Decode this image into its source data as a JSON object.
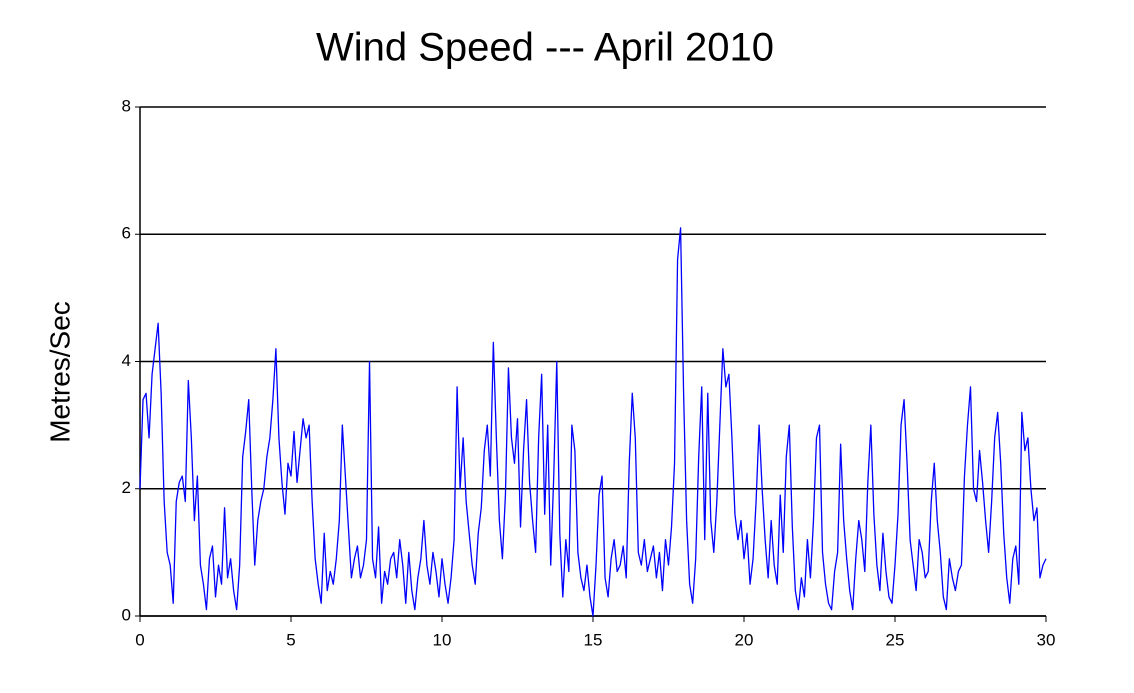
{
  "chart_data": {
    "type": "line",
    "title": "Wind Speed --- April 2010",
    "ylabel": "Metres/Sec",
    "xlim": [
      0,
      30
    ],
    "xticks": [
      0,
      5,
      10,
      15,
      20,
      25,
      30
    ],
    "ylim": [
      0,
      8
    ],
    "yticks": [
      0,
      2,
      4,
      6,
      8
    ],
    "grid": true,
    "x": [
      0,
      0.1,
      0.2,
      0.3,
      0.4,
      0.5,
      0.6,
      0.7,
      0.8,
      0.9,
      1,
      1.1,
      1.2,
      1.3,
      1.4,
      1.5,
      1.6,
      1.7,
      1.8,
      1.9,
      2,
      2.1,
      2.2,
      2.3,
      2.4,
      2.5,
      2.6,
      2.7,
      2.8,
      2.9,
      3,
      3.1,
      3.2,
      3.3,
      3.4,
      3.5,
      3.6,
      3.7,
      3.8,
      3.9,
      4,
      4.1,
      4.2,
      4.3,
      4.4,
      4.5,
      4.6,
      4.7,
      4.8,
      4.9,
      5,
      5.1,
      5.2,
      5.3,
      5.4,
      5.5,
      5.6,
      5.7,
      5.8,
      5.9,
      6,
      6.1,
      6.2,
      6.3,
      6.4,
      6.5,
      6.6,
      6.7,
      6.8,
      6.9,
      7,
      7.1,
      7.2,
      7.3,
      7.4,
      7.5,
      7.6,
      7.7,
      7.8,
      7.9,
      8,
      8.1,
      8.2,
      8.3,
      8.4,
      8.5,
      8.6,
      8.7,
      8.8,
      8.9,
      9,
      9.1,
      9.2,
      9.3,
      9.4,
      9.5,
      9.6,
      9.7,
      9.8,
      9.9,
      10,
      10.1,
      10.2,
      10.3,
      10.4,
      10.5,
      10.6,
      10.7,
      10.8,
      10.9,
      11,
      11.1,
      11.2,
      11.3,
      11.4,
      11.5,
      11.6,
      11.7,
      11.8,
      11.9,
      12,
      12.1,
      12.2,
      12.3,
      12.4,
      12.5,
      12.6,
      12.7,
      12.8,
      12.9,
      13,
      13.1,
      13.2,
      13.3,
      13.4,
      13.5,
      13.6,
      13.7,
      13.8,
      13.9,
      14,
      14.1,
      14.2,
      14.3,
      14.4,
      14.5,
      14.6,
      14.7,
      14.8,
      14.9,
      15,
      15.1,
      15.2,
      15.3,
      15.4,
      15.5,
      15.6,
      15.7,
      15.8,
      15.9,
      16,
      16.1,
      16.2,
      16.3,
      16.4,
      16.5,
      16.6,
      16.7,
      16.8,
      16.9,
      17,
      17.1,
      17.2,
      17.3,
      17.4,
      17.5,
      17.6,
      17.7,
      17.8,
      17.9,
      18,
      18.1,
      18.2,
      18.3,
      18.4,
      18.5,
      18.6,
      18.7,
      18.8,
      18.9,
      19,
      19.1,
      19.2,
      19.3,
      19.4,
      19.5,
      19.6,
      19.7,
      19.8,
      19.9,
      20,
      20.1,
      20.2,
      20.3,
      20.4,
      20.5,
      20.6,
      20.7,
      20.8,
      20.9,
      21,
      21.1,
      21.2,
      21.3,
      21.4,
      21.5,
      21.6,
      21.7,
      21.8,
      21.9,
      22,
      22.1,
      22.2,
      22.3,
      22.4,
      22.5,
      22.6,
      22.7,
      22.8,
      22.9,
      23,
      23.1,
      23.2,
      23.3,
      23.4,
      23.5,
      23.6,
      23.7,
      23.8,
      23.9,
      24,
      24.1,
      24.2,
      24.3,
      24.4,
      24.5,
      24.6,
      24.7,
      24.8,
      24.9,
      25,
      25.1,
      25.2,
      25.3,
      25.4,
      25.5,
      25.6,
      25.7,
      25.8,
      25.9,
      26,
      26.1,
      26.2,
      26.3,
      26.4,
      26.5,
      26.6,
      26.7,
      26.8,
      26.9,
      27,
      27.1,
      27.2,
      27.3,
      27.4,
      27.5,
      27.6,
      27.7,
      27.8,
      27.9,
      28,
      28.1,
      28.2,
      28.3,
      28.4,
      28.5,
      28.6,
      28.7,
      28.8,
      28.9,
      29,
      29.1,
      29.2,
      29.3,
      29.4,
      29.5,
      29.6,
      29.7,
      29.8,
      29.9,
      30
    ],
    "series": [
      {
        "color": "#0000ff",
        "values": [
          2.0,
          3.4,
          3.5,
          2.8,
          3.8,
          4.2,
          4.6,
          3.5,
          1.8,
          1.0,
          0.8,
          0.2,
          1.8,
          2.1,
          2.2,
          1.8,
          3.7,
          2.8,
          1.5,
          2.2,
          0.8,
          0.5,
          0.1,
          0.9,
          1.1,
          0.3,
          0.8,
          0.5,
          1.7,
          0.6,
          0.9,
          0.4,
          0.1,
          0.8,
          2.5,
          2.9,
          3.4,
          2.0,
          0.8,
          1.5,
          1.8,
          2.0,
          2.5,
          2.8,
          3.4,
          4.2,
          2.8,
          2.1,
          1.6,
          2.4,
          2.2,
          2.9,
          2.1,
          2.6,
          3.1,
          2.8,
          3.0,
          1.8,
          0.9,
          0.5,
          0.2,
          1.3,
          0.4,
          0.7,
          0.5,
          0.9,
          1.5,
          3.0,
          2.2,
          1.4,
          0.6,
          0.9,
          1.1,
          0.6,
          0.8,
          1.2,
          4.0,
          0.9,
          0.6,
          1.4,
          0.2,
          0.7,
          0.5,
          0.9,
          1.0,
          0.6,
          1.2,
          0.8,
          0.2,
          1.0,
          0.4,
          0.1,
          0.6,
          0.9,
          1.5,
          0.8,
          0.5,
          1.0,
          0.7,
          0.3,
          0.9,
          0.5,
          0.2,
          0.6,
          1.2,
          3.6,
          2.0,
          2.8,
          1.8,
          1.3,
          0.8,
          0.5,
          1.3,
          1.7,
          2.6,
          3.0,
          2.2,
          4.3,
          2.8,
          1.5,
          0.9,
          1.9,
          3.9,
          2.8,
          2.4,
          3.1,
          1.4,
          2.6,
          3.4,
          2.1,
          1.5,
          1.0,
          2.8,
          3.8,
          1.6,
          3.0,
          0.8,
          2.2,
          4.0,
          1.3,
          0.3,
          1.2,
          0.7,
          3.0,
          2.6,
          1.0,
          0.6,
          0.4,
          0.8,
          0.3,
          0.0,
          0.8,
          1.9,
          2.2,
          0.6,
          0.3,
          0.9,
          1.2,
          0.7,
          0.8,
          1.1,
          0.6,
          2.4,
          3.5,
          2.8,
          1.0,
          0.8,
          1.2,
          0.7,
          0.9,
          1.1,
          0.6,
          1.0,
          0.4,
          1.2,
          0.8,
          1.4,
          2.4,
          5.6,
          6.1,
          3.5,
          1.5,
          0.5,
          0.2,
          0.9,
          2.5,
          3.6,
          1.2,
          3.5,
          1.5,
          1.0,
          1.8,
          3.0,
          4.2,
          3.6,
          3.8,
          2.8,
          1.6,
          1.2,
          1.5,
          0.9,
          1.3,
          0.5,
          0.9,
          1.8,
          3.0,
          2.0,
          1.2,
          0.6,
          1.5,
          0.8,
          0.5,
          1.9,
          1.0,
          2.5,
          3.0,
          1.4,
          0.4,
          0.1,
          0.6,
          0.3,
          1.2,
          0.6,
          1.5,
          2.8,
          3.0,
          1.0,
          0.5,
          0.2,
          0.1,
          0.7,
          1.0,
          2.7,
          1.5,
          0.9,
          0.4,
          0.1,
          0.9,
          1.5,
          1.2,
          0.7,
          2.1,
          3.0,
          1.6,
          0.8,
          0.4,
          1.3,
          0.7,
          0.3,
          0.2,
          0.8,
          1.6,
          3.0,
          3.4,
          2.4,
          1.2,
          0.8,
          0.4,
          1.2,
          1.0,
          0.6,
          0.7,
          1.8,
          2.4,
          1.5,
          1.0,
          0.3,
          0.1,
          0.9,
          0.6,
          0.4,
          0.7,
          0.8,
          2.2,
          3.0,
          3.6,
          2.0,
          1.8,
          2.6,
          2.1,
          1.5,
          1.0,
          1.8,
          2.8,
          3.2,
          2.4,
          1.3,
          0.6,
          0.2,
          0.9,
          1.1,
          0.5,
          3.2,
          2.6,
          2.8,
          2.0,
          1.5,
          1.7,
          0.6,
          0.8,
          0.9
        ]
      }
    ]
  }
}
